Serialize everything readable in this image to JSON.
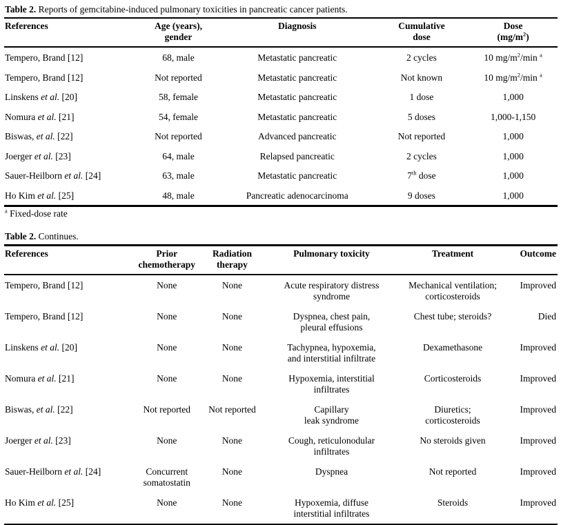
{
  "page": {
    "background": "#ffffff",
    "text_color": "#000000"
  },
  "table1": {
    "caption": [
      {
        "t": "Table 2.",
        "s": "b"
      },
      {
        "t": " Reports of gemcitabine-induced pulmonary toxicities in pancreatic cancer patients."
      }
    ],
    "col_widths": [
      "24%",
      "15%",
      "28%",
      "17%",
      "16%"
    ],
    "headers": [
      [
        {
          "t": "References"
        }
      ],
      [
        {
          "t": "Age (years),"
        },
        {
          "br": true
        },
        {
          "t": "gender"
        }
      ],
      [
        {
          "t": "Diagnosis"
        }
      ],
      [
        {
          "t": "Cumulative"
        },
        {
          "br": true
        },
        {
          "t": "dose"
        }
      ],
      [
        {
          "t": "Dose"
        },
        {
          "br": true
        },
        {
          "t": "(mg/m"
        },
        {
          "t": "2",
          "s": "sup"
        },
        {
          "t": ")"
        }
      ]
    ],
    "rows": [
      [
        [
          {
            "t": "Tempero, Brand [12]"
          }
        ],
        [
          {
            "t": "68, male"
          }
        ],
        [
          {
            "t": "Metastatic pancreatic"
          }
        ],
        [
          {
            "t": "2 cycles"
          }
        ],
        [
          {
            "t": "10 mg/m"
          },
          {
            "t": "2",
            "s": "sup"
          },
          {
            "t": "/min "
          },
          {
            "t": "a",
            "s": "sup"
          }
        ]
      ],
      [
        [
          {
            "t": "Tempero, Brand [12]"
          }
        ],
        [
          {
            "t": "Not reported"
          }
        ],
        [
          {
            "t": "Metastatic pancreatic"
          }
        ],
        [
          {
            "t": "Not known"
          }
        ],
        [
          {
            "t": "10 mg/m"
          },
          {
            "t": "2",
            "s": "sup"
          },
          {
            "t": "/min "
          },
          {
            "t": "a",
            "s": "sup"
          }
        ]
      ],
      [
        [
          {
            "t": "Linskens "
          },
          {
            "t": "et al.",
            "s": "i"
          },
          {
            "t": " [20]"
          }
        ],
        [
          {
            "t": "58, female"
          }
        ],
        [
          {
            "t": "Metastatic pancreatic"
          }
        ],
        [
          {
            "t": "1 dose"
          }
        ],
        [
          {
            "t": "1,000"
          }
        ]
      ],
      [
        [
          {
            "t": "Nomura "
          },
          {
            "t": "et al.",
            "s": "i"
          },
          {
            "t": " [21]"
          }
        ],
        [
          {
            "t": "54, female"
          }
        ],
        [
          {
            "t": "Metastatic pancreatic"
          }
        ],
        [
          {
            "t": "5 doses"
          }
        ],
        [
          {
            "t": "1,000-1,150"
          }
        ]
      ],
      [
        [
          {
            "t": "Biswas, "
          },
          {
            "t": "et al.",
            "s": "i"
          },
          {
            "t": " [22]"
          }
        ],
        [
          {
            "t": "Not reported"
          }
        ],
        [
          {
            "t": "Advanced pancreatic"
          }
        ],
        [
          {
            "t": "Not reported"
          }
        ],
        [
          {
            "t": "1,000"
          }
        ]
      ],
      [
        [
          {
            "t": "Joerger "
          },
          {
            "t": "et al.",
            "s": "i"
          },
          {
            "t": " [23]"
          }
        ],
        [
          {
            "t": "64, male"
          }
        ],
        [
          {
            "t": "Relapsed pancreatic"
          }
        ],
        [
          {
            "t": "2 cycles"
          }
        ],
        [
          {
            "t": "1,000"
          }
        ]
      ],
      [
        [
          {
            "t": "Sauer-Heilborn "
          },
          {
            "t": "et al.",
            "s": "i"
          },
          {
            "t": " [24]"
          }
        ],
        [
          {
            "t": "63, male"
          }
        ],
        [
          {
            "t": "Metastatic pancreatic"
          }
        ],
        [
          {
            "t": "7"
          },
          {
            "t": "th",
            "s": "sup"
          },
          {
            "t": " dose"
          }
        ],
        [
          {
            "t": "1,000"
          }
        ]
      ],
      [
        [
          {
            "t": "Ho Kim "
          },
          {
            "t": "et al.",
            "s": "i"
          },
          {
            "t": " [25]"
          }
        ],
        [
          {
            "t": "48, male"
          }
        ],
        [
          {
            "t": "Pancreatic adenocarcinoma"
          }
        ],
        [
          {
            "t": "9 doses"
          }
        ],
        [
          {
            "t": "1,000"
          }
        ]
      ]
    ],
    "footnote": [
      {
        "t": "a",
        "s": "sup"
      },
      {
        "t": " Fixed-dose rate"
      }
    ]
  },
  "table2": {
    "caption": [
      {
        "t": "Table 2.",
        "s": "b"
      },
      {
        "t": " Continues."
      }
    ],
    "col_widths": [
      "23%",
      "13%",
      "10.5%",
      "25.5%",
      "18.5%",
      "9.5%"
    ],
    "headers": [
      [
        {
          "t": "References"
        }
      ],
      [
        {
          "t": "Prior"
        },
        {
          "br": true
        },
        {
          "t": "chemotherapy"
        }
      ],
      [
        {
          "t": "Radiation"
        },
        {
          "br": true
        },
        {
          "t": "therapy"
        }
      ],
      [
        {
          "t": "Pulmonary toxicity"
        }
      ],
      [
        {
          "t": "Treatment"
        }
      ],
      [
        {
          "t": "Outcome"
        }
      ]
    ],
    "rows": [
      [
        [
          {
            "t": "Tempero, Brand [12]"
          }
        ],
        [
          {
            "t": "None"
          }
        ],
        [
          {
            "t": "None"
          }
        ],
        [
          {
            "t": "Acute respiratory distress"
          },
          {
            "br": true
          },
          {
            "t": "syndrome"
          }
        ],
        [
          {
            "t": "Mechanical ventilation;"
          },
          {
            "br": true
          },
          {
            "t": "corticosteroids"
          }
        ],
        [
          {
            "t": "Improved"
          }
        ]
      ],
      [
        [
          {
            "t": "Tempero, Brand [12]"
          }
        ],
        [
          {
            "t": "None"
          }
        ],
        [
          {
            "t": "None"
          }
        ],
        [
          {
            "t": "Dyspnea, chest pain,"
          },
          {
            "br": true
          },
          {
            "t": "pleural effusions"
          }
        ],
        [
          {
            "t": "Chest tube; steroids?"
          }
        ],
        [
          {
            "t": "Died"
          }
        ]
      ],
      [
        [
          {
            "t": "Linskens "
          },
          {
            "t": "et al.",
            "s": "i"
          },
          {
            "t": " [20]"
          }
        ],
        [
          {
            "t": "None"
          }
        ],
        [
          {
            "t": "None"
          }
        ],
        [
          {
            "t": "Tachypnea, hypoxemia,"
          },
          {
            "br": true
          },
          {
            "t": "and interstitial infiltrate"
          }
        ],
        [
          {
            "t": "Dexamethasone"
          }
        ],
        [
          {
            "t": "Improved"
          }
        ]
      ],
      [
        [
          {
            "t": "Nomura "
          },
          {
            "t": "et al.",
            "s": "i"
          },
          {
            "t": " [21]"
          }
        ],
        [
          {
            "t": "None"
          }
        ],
        [
          {
            "t": "None"
          }
        ],
        [
          {
            "t": "Hypoxemia, interstitial"
          },
          {
            "br": true
          },
          {
            "t": "infiltrates"
          }
        ],
        [
          {
            "t": "Corticosteroids"
          }
        ],
        [
          {
            "t": "Improved"
          }
        ]
      ],
      [
        [
          {
            "t": "Biswas, "
          },
          {
            "t": "et al.",
            "s": "i"
          },
          {
            "t": " [22]"
          }
        ],
        [
          {
            "t": "Not reported"
          }
        ],
        [
          {
            "t": "Not reported"
          }
        ],
        [
          {
            "t": "Capillary"
          },
          {
            "br": true
          },
          {
            "t": "leak syndrome"
          }
        ],
        [
          {
            "t": "Diuretics;"
          },
          {
            "br": true
          },
          {
            "t": "corticosteroids"
          }
        ],
        [
          {
            "t": "Improved"
          }
        ]
      ],
      [
        [
          {
            "t": "Joerger "
          },
          {
            "t": "et al.",
            "s": "i"
          },
          {
            "t": " [23]"
          }
        ],
        [
          {
            "t": "None"
          }
        ],
        [
          {
            "t": "None"
          }
        ],
        [
          {
            "t": "Cough, reticulonodular"
          },
          {
            "br": true
          },
          {
            "t": "infiltrates"
          }
        ],
        [
          {
            "t": "No steroids given"
          }
        ],
        [
          {
            "t": "Improved"
          }
        ]
      ],
      [
        [
          {
            "t": "Sauer-Heilborn "
          },
          {
            "t": "et al.",
            "s": "i"
          },
          {
            "t": " [24]"
          }
        ],
        [
          {
            "t": "Concurrent"
          },
          {
            "br": true
          },
          {
            "t": "somatostatin"
          }
        ],
        [
          {
            "t": "None"
          }
        ],
        [
          {
            "t": "Dyspnea"
          }
        ],
        [
          {
            "t": "Not reported"
          }
        ],
        [
          {
            "t": "Improved"
          }
        ]
      ],
      [
        [
          {
            "t": "Ho Kim "
          },
          {
            "t": "et al.",
            "s": "i"
          },
          {
            "t": " [25]"
          }
        ],
        [
          {
            "t": "None"
          }
        ],
        [
          {
            "t": "None"
          }
        ],
        [
          {
            "t": "Hypoxemia, diffuse"
          },
          {
            "br": true
          },
          {
            "t": "interstitial infiltrates"
          }
        ],
        [
          {
            "t": "Steroids"
          }
        ],
        [
          {
            "t": "Improved"
          }
        ]
      ]
    ]
  }
}
